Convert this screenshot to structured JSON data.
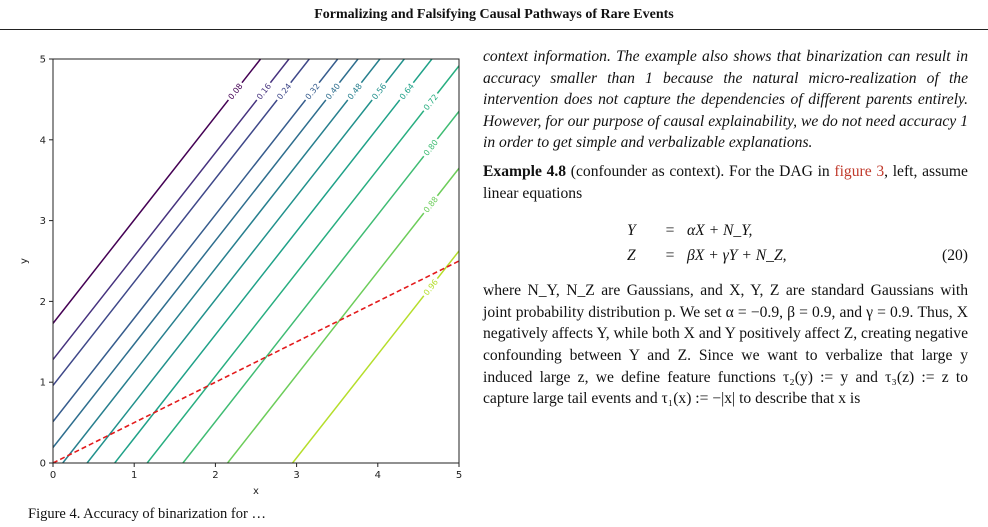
{
  "header": {
    "title": "Formalizing and Falsifying Causal Pathways of Rare Events"
  },
  "chart_data": {
    "type": "contour",
    "xlabel": "x",
    "ylabel": "y",
    "xlim": [
      0,
      5
    ],
    "ylim": [
      0,
      5
    ],
    "xticks": [
      "0",
      "1",
      "2",
      "3",
      "4",
      "5"
    ],
    "yticks": [
      "0",
      "1",
      "2",
      "3",
      "4",
      "5"
    ],
    "contour_lines": [
      {
        "level": "0.08",
        "x_at_y0": -1.35,
        "color": "#440154"
      },
      {
        "level": "0.16",
        "x_at_y0": -1.0,
        "color": "#46327e"
      },
      {
        "level": "0.24",
        "x_at_y0": -0.75,
        "color": "#3f4889"
      },
      {
        "level": "0.32",
        "x_at_y0": -0.4,
        "color": "#365c8d"
      },
      {
        "level": "0.40",
        "x_at_y0": -0.15,
        "color": "#2e6e8e"
      },
      {
        "level": "0.48",
        "x_at_y0": 0.12,
        "color": "#277f8e"
      },
      {
        "level": "0.56",
        "x_at_y0": 0.42,
        "color": "#21918c"
      },
      {
        "level": "0.64",
        "x_at_y0": 0.76,
        "color": "#1fa188"
      },
      {
        "level": "0.72",
        "x_at_y0": 1.16,
        "color": "#28ae80"
      },
      {
        "level": "0.80",
        "x_at_y0": 1.6,
        "color": "#3fbc73"
      },
      {
        "level": "0.88",
        "x_at_y0": 2.15,
        "color": "#6ccd5a"
      },
      {
        "level": "0.96",
        "x_at_y0": 2.95,
        "color": "#b5de2b"
      }
    ],
    "contour_slope": 1.28,
    "threshold_line": {
      "slope": 0.5,
      "intercept": 0,
      "color": "#e31a1c",
      "style": "dashed"
    }
  },
  "caption": {
    "text": "Figure 4. Accuracy of binarization for …"
  },
  "body": {
    "para1": "context information. The example also shows that binarization can result in accuracy smaller than 1 because the natural micro-realization of the intervention does not capture the dependencies of different parents entirely. However, for our purpose of causal explainability, we do not need accuracy 1 in order to get simple and verbalizable explanations.",
    "example_title": "Example 4.8",
    "example_subtitle": " (confounder as context).",
    "example_intro": " For the DAG in ",
    "figure_ref": "figure 3",
    "example_rest": ", left, assume linear equations",
    "eq1_lhs": "Y",
    "eq1_rhs": "αX + N_Y,",
    "eq2_lhs": "Z",
    "eq2_rhs": "βX + γY + N_Z,",
    "eq_number": "(20)",
    "para3_1": "where N_Y, N_Z are Gaussians, and X, Y, Z are standard Gaussians with joint probability distribution p. We set α = −0.9, β = 0.9, and γ = 0.9. Thus, X negatively affects Y, while both X and Y positively affect Z, creating negative confounding between Y and Z. Since we want to verbalize that large y induced large z, we define feature functions τ₂(y) := y and τ₃(z) := z to capture large tail events and τ₁(x) := −|x| to describe that x is"
  }
}
